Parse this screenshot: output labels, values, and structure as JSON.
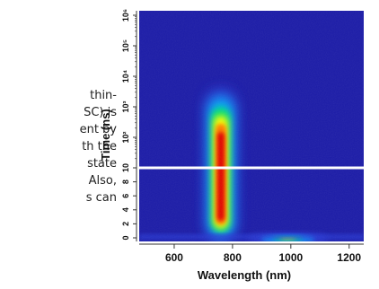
{
  "text_fragment": {
    "lines": [
      "thin-",
      "SC) is",
      "ent by",
      "th the",
      "state",
      "Also,",
      "s can"
    ]
  },
  "chart_data": {
    "type": "heatmap",
    "xlabel": "Wavelength (nm)",
    "ylabel": "Time (ns)",
    "x_range": [
      480,
      1250
    ],
    "x_ticks": [
      {
        "value": 600,
        "label": "600"
      },
      {
        "value": 800,
        "label": "800"
      },
      {
        "value": 1000,
        "label": "1000"
      },
      {
        "value": 1200,
        "label": "1200"
      }
    ],
    "y_scale": "linear 0-10 then log 10-1e6",
    "y_ticks": [
      {
        "value": 0,
        "label": "0"
      },
      {
        "value": 2,
        "label": "2"
      },
      {
        "value": 4,
        "label": "4"
      },
      {
        "value": 6,
        "label": "6"
      },
      {
        "value": 8,
        "label": "8"
      },
      {
        "value": 10,
        "label": "10"
      },
      {
        "value": 100,
        "label": "10²"
      },
      {
        "value": 1000,
        "label": "10³"
      },
      {
        "value": 10000,
        "label": "10⁴"
      },
      {
        "value": 100000,
        "label": "10⁵"
      },
      {
        "value": 1000000,
        "label": "10⁶"
      }
    ],
    "reference_line": {
      "y": 10,
      "color": "#ffffff"
    },
    "features": [
      {
        "center_wavelength": 760,
        "time_range": [
          -0.5,
          4000
        ],
        "peak_intensity": "high"
      },
      {
        "center_wavelength": 990,
        "time_range": [
          -0.5,
          2
        ],
        "peak_intensity": "low"
      }
    ],
    "colormap": [
      "#1c1ca8",
      "#2a3cd8",
      "#00b4ff",
      "#00e070",
      "#ffff00",
      "#ff8000",
      "#e00000"
    ]
  }
}
